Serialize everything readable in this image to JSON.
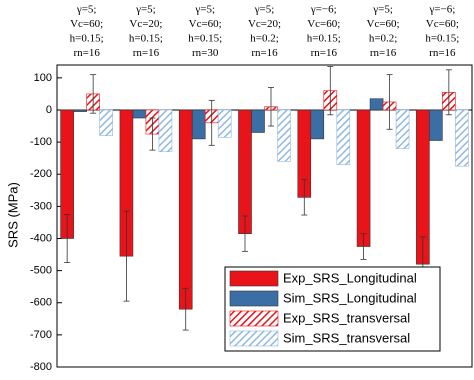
{
  "chart_data": {
    "type": "bar",
    "y_label": "SRS (MPa)",
    "categories": [
      [
        "γ=5;",
        "Vc=60;",
        "h=0.15;",
        "rn=16"
      ],
      [
        "γ=5;",
        "Vc=20;",
        "h=0.15;",
        "rn=16"
      ],
      [
        "γ=5;",
        "Vc=60;",
        "h=0.15;",
        "rn=30"
      ],
      [
        "γ=5;",
        "Vc=20;",
        "h=0.2;",
        "rn=16"
      ],
      [
        "γ=−6;",
        "Vc=60;",
        "h=0.15;",
        "rn=16"
      ],
      [
        "γ=5;",
        "Vc=60;",
        "h=0.2;",
        "rn=16"
      ],
      [
        "γ=−6;",
        "Vc=60;",
        "h=0.15;",
        "rn=16"
      ]
    ],
    "series": [
      {
        "name": "Exp_SRS_Longitudinal",
        "color": "#e8141a",
        "hatch": false,
        "values": [
          -400,
          -455,
          -620,
          -385,
          -272,
          -425,
          -480
        ],
        "errors": [
          75,
          140,
          65,
          55,
          55,
          40,
          85
        ]
      },
      {
        "name": "Sim_SRS_Longitudinal",
        "color": "#3a6ea5",
        "hatch": false,
        "values": [
          -5,
          -25,
          -90,
          -70,
          -90,
          35,
          -95
        ]
      },
      {
        "name": "Exp_SRS_transversal",
        "color": "#e8141a",
        "hatch": true,
        "values": [
          50,
          -75,
          -40,
          10,
          60,
          25,
          55
        ],
        "errors": [
          60,
          50,
          70,
          60,
          75,
          85,
          70
        ]
      },
      {
        "name": "Sim_SRS_transversal",
        "color": "#8fb8e3",
        "hatch": true,
        "values": [
          -80,
          -130,
          -85,
          -160,
          -170,
          -120,
          -175
        ]
      }
    ],
    "ylim": [
      -800,
      140
    ],
    "yticks": [
      -800,
      -700,
      -600,
      -500,
      -400,
      -300,
      -200,
      -100,
      0,
      100
    ],
    "legend": "lower right"
  }
}
